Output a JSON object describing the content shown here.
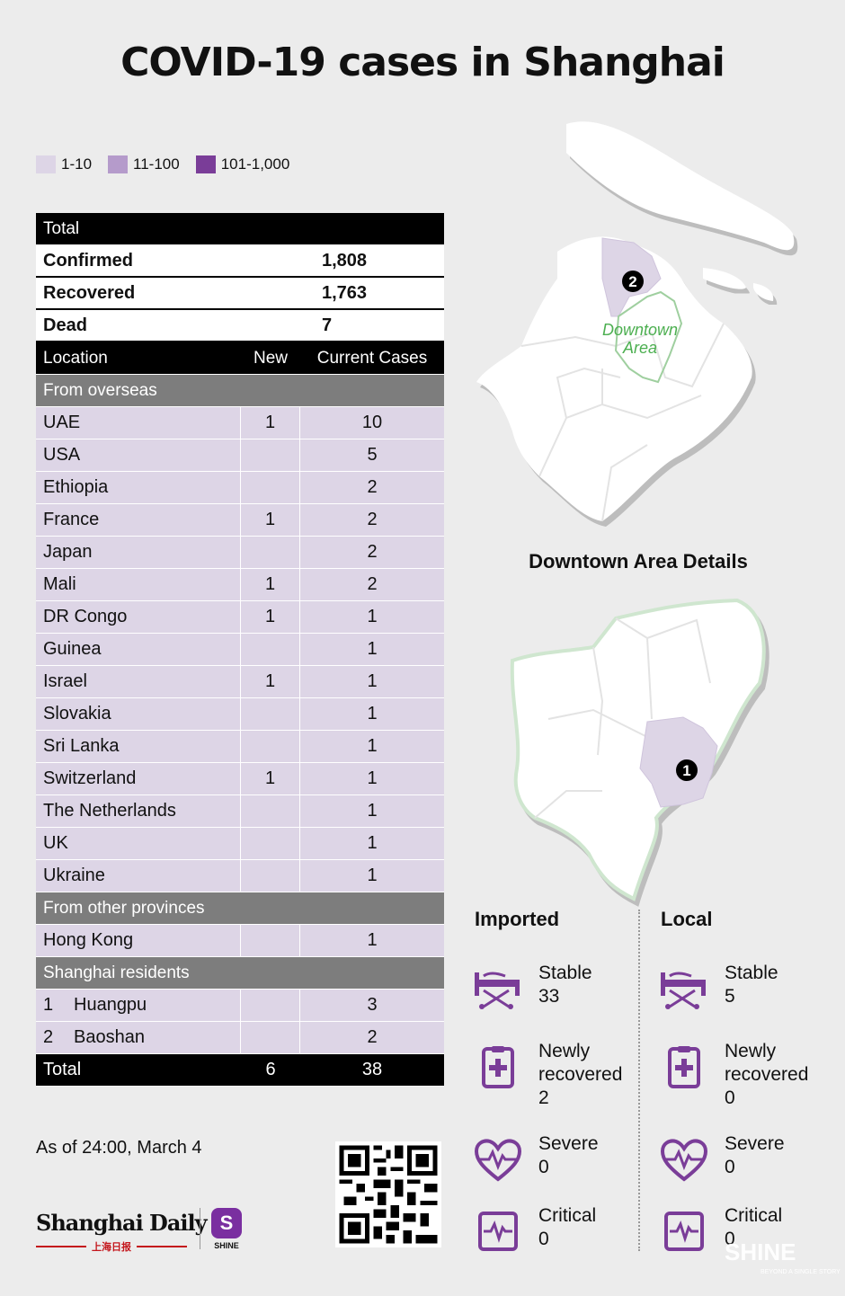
{
  "title": "COVID-19 cases in Shanghai",
  "legend": [
    {
      "label": "1-10",
      "color": "#ddd5e6"
    },
    {
      "label": "11-100",
      "color": "#b59bcb"
    },
    {
      "label": "101-1,000",
      "color": "#7a3d98"
    }
  ],
  "totals": {
    "header": "Total",
    "rows": [
      {
        "label": "Confirmed",
        "value": "1,808"
      },
      {
        "label": "Recovered",
        "value": "1,763"
      },
      {
        "label": "Dead",
        "value": "7"
      }
    ]
  },
  "table_header": {
    "location": "Location",
    "new": "New",
    "current": "Current Cases"
  },
  "overseas": {
    "heading": "From overseas",
    "rows": [
      {
        "location": "UAE",
        "new": "1",
        "current": "10"
      },
      {
        "location": "USA",
        "new": "",
        "current": "5"
      },
      {
        "location": "Ethiopia",
        "new": "",
        "current": "2"
      },
      {
        "location": "France",
        "new": "1",
        "current": "2"
      },
      {
        "location": "Japan",
        "new": "",
        "current": "2"
      },
      {
        "location": "Mali",
        "new": "1",
        "current": "2"
      },
      {
        "location": "DR Congo",
        "new": "1",
        "current": "1"
      },
      {
        "location": "Guinea",
        "new": "",
        "current": "1"
      },
      {
        "location": "Israel",
        "new": "1",
        "current": "1"
      },
      {
        "location": "Slovakia",
        "new": "",
        "current": "1"
      },
      {
        "location": "Sri Lanka",
        "new": "",
        "current": "1"
      },
      {
        "location": "Switzerland",
        "new": "1",
        "current": "1"
      },
      {
        "location": "The Netherlands",
        "new": "",
        "current": "1"
      },
      {
        "location": "UK",
        "new": "",
        "current": "1"
      },
      {
        "location": "Ukraine",
        "new": "",
        "current": "1"
      }
    ]
  },
  "provinces": {
    "heading": "From other provinces",
    "rows": [
      {
        "location": "Hong Kong",
        "new": "",
        "current": "1"
      }
    ]
  },
  "residents": {
    "heading": "Shanghai residents",
    "rows": [
      {
        "num": "1",
        "location": "Huangpu",
        "new": "",
        "current": "3"
      },
      {
        "num": "2",
        "location": "Baoshan",
        "new": "",
        "current": "2"
      }
    ]
  },
  "grand_total": {
    "label": "Total",
    "new": "6",
    "current": "38"
  },
  "as_of": "As of 24:00, March 4",
  "logo": {
    "name": "Shanghai Daily",
    "chinese": "上海日报",
    "shine": "SHINE",
    "shine_letter": "S"
  },
  "map": {
    "marker_baoshan": "2",
    "downtown_label_1": "Downtown",
    "downtown_label_2": "Area",
    "downtown_title": "Downtown Area Details",
    "marker_huangpu": "1"
  },
  "imported": {
    "heading": "Imported",
    "stable_label": "Stable",
    "stable_value": "33",
    "recovered_label_1": "Newly",
    "recovered_label_2": "recovered",
    "recovered_value": "2",
    "severe_label": "Severe",
    "severe_value": "0",
    "critical_label": "Critical",
    "critical_value": "0"
  },
  "local": {
    "heading": "Local",
    "stable_label": "Stable",
    "stable_value": "5",
    "recovered_label_1": "Newly",
    "recovered_label_2": "recovered",
    "recovered_value": "0",
    "severe_label": "Severe",
    "severe_value": "0",
    "critical_label": "Critical",
    "critical_value": "0"
  },
  "watermark": {
    "brand": "SHINE",
    "tagline": "BEYOND A SINGLE STORY"
  },
  "colors": {
    "accent": "#7a3d98",
    "light": "#ddd5e6",
    "green_outline": "#9fcf9f"
  }
}
